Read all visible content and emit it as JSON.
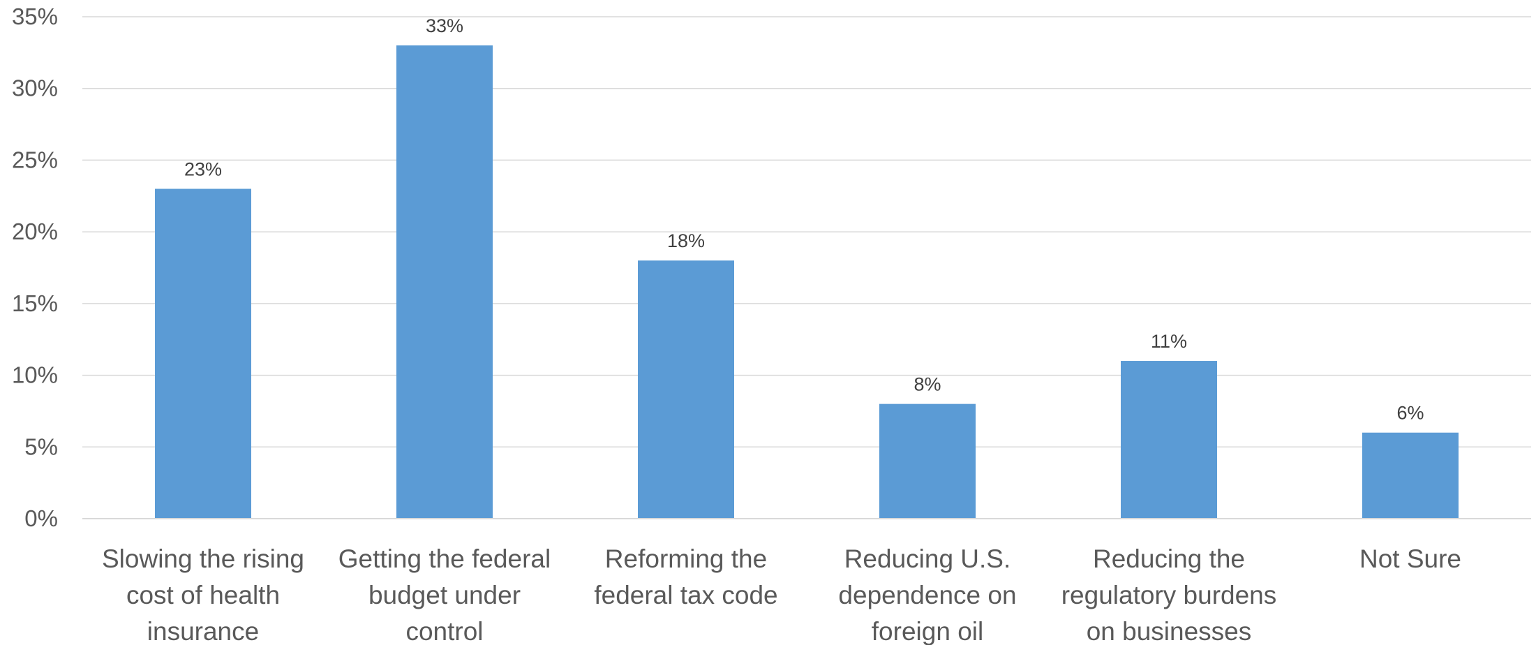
{
  "chart_data": {
    "type": "bar",
    "title": "",
    "xlabel": "",
    "ylabel": "",
    "categories": [
      "Slowing the rising cost of health insurance",
      "Getting the federal budget under control",
      "Reforming the federal tax code",
      "Reducing U.S. dependence on foreign oil",
      "Reducing the regulatory burdens on businesses",
      "Not Sure"
    ],
    "category_label_lines": [
      [
        "Slowing the rising",
        "cost of health",
        "insurance"
      ],
      [
        "Getting the federal",
        "budget under",
        "control"
      ],
      [
        "Reforming the",
        "federal tax code"
      ],
      [
        "Reducing U.S.",
        "dependence on",
        "foreign oil"
      ],
      [
        "Reducing the",
        "regulatory burdens",
        "on businesses"
      ],
      [
        "Not Sure"
      ]
    ],
    "values": [
      23,
      33,
      18,
      8,
      11,
      6
    ],
    "data_labels": [
      "23%",
      "33%",
      "18%",
      "8%",
      "11%",
      "6%"
    ],
    "ylim": [
      0,
      35
    ],
    "yticks": [
      0,
      5,
      10,
      15,
      20,
      25,
      30,
      35
    ],
    "ytick_labels": [
      "0%",
      "5%",
      "10%",
      "15%",
      "20%",
      "25%",
      "30%",
      "35%"
    ],
    "grid": true,
    "legend": "none",
    "colors": {
      "bar": "#5B9BD5",
      "grid": "#D9D9D9",
      "axis": "#D9D9D9"
    }
  }
}
